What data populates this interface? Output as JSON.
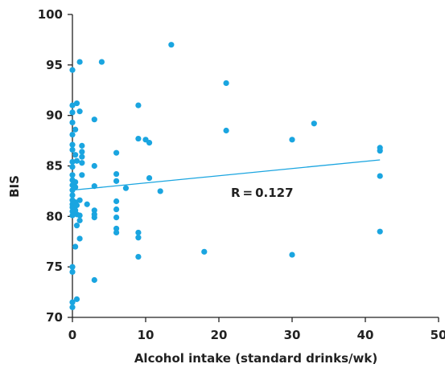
{
  "chart_data": {
    "type": "scatter",
    "title": "",
    "xlabel": "Alcohol intake (standard drinks/wk)",
    "ylabel": "BIS",
    "xlim": [
      0,
      50
    ],
    "ylim": [
      70,
      100
    ],
    "x_ticks": [
      0,
      10,
      20,
      30,
      40,
      50
    ],
    "y_ticks": [
      70,
      75,
      80,
      85,
      90,
      95,
      100
    ],
    "grid": false,
    "legend": "none",
    "annotation": "R = 0.127",
    "colors": {
      "points": "#1aa5e0",
      "trendline": "#1aa5e0",
      "axis": "#222222"
    },
    "trendline": {
      "x": [
        0,
        42
      ],
      "y": [
        82.6,
        85.6
      ]
    },
    "points": [
      {
        "x": 0,
        "y": 94.5
      },
      {
        "x": 0,
        "y": 91
      },
      {
        "x": 0,
        "y": 90.3
      },
      {
        "x": 0,
        "y": 89.3
      },
      {
        "x": 0,
        "y": 88.1
      },
      {
        "x": 0,
        "y": 87.1
      },
      {
        "x": 0,
        "y": 86.6
      },
      {
        "x": 0,
        "y": 85.4
      },
      {
        "x": 0,
        "y": 84.9
      },
      {
        "x": 0,
        "y": 84.1
      },
      {
        "x": 0,
        "y": 83.6
      },
      {
        "x": 0,
        "y": 83.1
      },
      {
        "x": 0,
        "y": 82.6
      },
      {
        "x": 0,
        "y": 82.1
      },
      {
        "x": 0,
        "y": 81.6
      },
      {
        "x": 0,
        "y": 81.2
      },
      {
        "x": 0,
        "y": 80.9
      },
      {
        "x": 0,
        "y": 80.5
      },
      {
        "x": 0,
        "y": 80.1
      },
      {
        "x": 0,
        "y": 75
      },
      {
        "x": 0,
        "y": 74.5
      },
      {
        "x": 0,
        "y": 71.5
      },
      {
        "x": 0,
        "y": 71
      },
      {
        "x": 0.4,
        "y": 88.6
      },
      {
        "x": 0.4,
        "y": 86.1
      },
      {
        "x": 0.4,
        "y": 83.4
      },
      {
        "x": 0.4,
        "y": 82.9
      },
      {
        "x": 0.4,
        "y": 81.4
      },
      {
        "x": 0.4,
        "y": 80.6
      },
      {
        "x": 0.4,
        "y": 77
      },
      {
        "x": 0.6,
        "y": 91.2
      },
      {
        "x": 0.6,
        "y": 85.5
      },
      {
        "x": 0.6,
        "y": 81.1
      },
      {
        "x": 0.6,
        "y": 80.2
      },
      {
        "x": 0.6,
        "y": 79.1
      },
      {
        "x": 0.6,
        "y": 71.8
      },
      {
        "x": 1,
        "y": 95.3
      },
      {
        "x": 1,
        "y": 90.4
      },
      {
        "x": 1,
        "y": 81.6
      },
      {
        "x": 1,
        "y": 80.1
      },
      {
        "x": 1,
        "y": 79.6
      },
      {
        "x": 1,
        "y": 77.8
      },
      {
        "x": 1.3,
        "y": 87
      },
      {
        "x": 1.3,
        "y": 86.4
      },
      {
        "x": 1.3,
        "y": 85.9
      },
      {
        "x": 1.3,
        "y": 85.3
      },
      {
        "x": 1.3,
        "y": 84.1
      },
      {
        "x": 2,
        "y": 81.2
      },
      {
        "x": 3,
        "y": 89.6
      },
      {
        "x": 3,
        "y": 85
      },
      {
        "x": 3,
        "y": 83
      },
      {
        "x": 3,
        "y": 80.6
      },
      {
        "x": 3,
        "y": 80.2
      },
      {
        "x": 3,
        "y": 79.9
      },
      {
        "x": 3,
        "y": 73.7
      },
      {
        "x": 4,
        "y": 95.3
      },
      {
        "x": 6,
        "y": 86.3
      },
      {
        "x": 6,
        "y": 84.2
      },
      {
        "x": 6,
        "y": 83.5
      },
      {
        "x": 6,
        "y": 81.5
      },
      {
        "x": 6,
        "y": 80.7
      },
      {
        "x": 6,
        "y": 79.9
      },
      {
        "x": 6,
        "y": 78.8
      },
      {
        "x": 6,
        "y": 78.4
      },
      {
        "x": 7.3,
        "y": 82.8
      },
      {
        "x": 9,
        "y": 91
      },
      {
        "x": 9,
        "y": 87.7
      },
      {
        "x": 9,
        "y": 78.4
      },
      {
        "x": 9,
        "y": 77.9
      },
      {
        "x": 9,
        "y": 76
      },
      {
        "x": 10,
        "y": 87.6
      },
      {
        "x": 10.5,
        "y": 87.3
      },
      {
        "x": 10.5,
        "y": 83.8
      },
      {
        "x": 12,
        "y": 82.5
      },
      {
        "x": 13.5,
        "y": 97
      },
      {
        "x": 18,
        "y": 76.5
      },
      {
        "x": 21,
        "y": 93.2
      },
      {
        "x": 21,
        "y": 88.5
      },
      {
        "x": 30,
        "y": 87.6
      },
      {
        "x": 30,
        "y": 76.2
      },
      {
        "x": 33,
        "y": 89.2
      },
      {
        "x": 42,
        "y": 86.8
      },
      {
        "x": 42,
        "y": 86.5
      },
      {
        "x": 42,
        "y": 84
      },
      {
        "x": 42,
        "y": 78.5
      }
    ]
  }
}
